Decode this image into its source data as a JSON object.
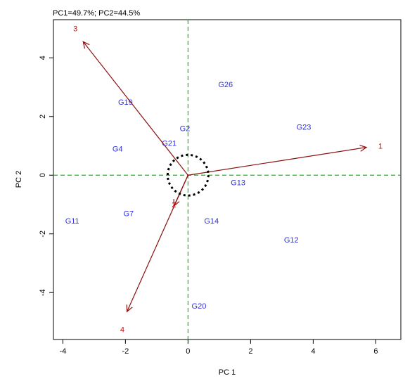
{
  "chart_data": {
    "type": "scatter",
    "variant": "gge-biplot",
    "title": "PC1=49.7%; PC2=44.5%",
    "xlabel": "PC 1",
    "ylabel": "PC 2",
    "xlim": [
      -4.3,
      6.8
    ],
    "ylim": [
      -5.6,
      5.3
    ],
    "x_ticks": [
      -4,
      -2,
      0,
      2,
      4,
      6
    ],
    "x_tick_labels": [
      "-4",
      "-2",
      "0",
      "2",
      "4",
      "6"
    ],
    "y_ticks": [
      4,
      2,
      0,
      -2,
      -4
    ],
    "y_tick_labels": [
      "4",
      "2",
      "0",
      "-2",
      "-4"
    ],
    "grid": false,
    "reference_lines": {
      "x": 0,
      "y": 0,
      "color": "#00cc00",
      "style": "dashed"
    },
    "genotype_color": "#3030e0",
    "environment_color": "#d01010",
    "vector_color": "#8b1010",
    "circle_color": "#000000",
    "genotypes": [
      {
        "label": "G26",
        "x": 1.2,
        "y": 3.1
      },
      {
        "label": "G19",
        "x": -2.0,
        "y": 2.5
      },
      {
        "label": "G23",
        "x": 3.7,
        "y": 1.65
      },
      {
        "label": "G2",
        "x": -0.1,
        "y": 1.6
      },
      {
        "label": "G4",
        "x": -2.25,
        "y": 0.9
      },
      {
        "label": "G21",
        "x": -0.6,
        "y": 1.1
      },
      {
        "label": "G13",
        "x": 1.6,
        "y": -0.25
      },
      {
        "label": "G7",
        "x": -1.9,
        "y": -1.3
      },
      {
        "label": "G11",
        "x": -3.7,
        "y": -1.55
      },
      {
        "label": "G14",
        "x": 0.75,
        "y": -1.55
      },
      {
        "label": "G12",
        "x": 3.3,
        "y": -2.2
      },
      {
        "label": "G20",
        "x": 0.35,
        "y": -4.45
      }
    ],
    "environments": [
      {
        "label": "1",
        "x": 6.15,
        "y": 1.0,
        "vector_end": [
          5.7,
          0.95
        ]
      },
      {
        "label": "3",
        "x": -3.6,
        "y": 5.0,
        "vector_end": [
          -3.35,
          4.55
        ]
      },
      {
        "label": "2",
        "x": -0.45,
        "y": -1.0,
        "vector_end": [
          -0.45,
          -1.05
        ]
      },
      {
        "label": "4",
        "x": -2.1,
        "y": -5.25,
        "vector_end": [
          -1.95,
          -4.65
        ]
      }
    ],
    "average_circle": {
      "cx": 0,
      "cy": 0,
      "r": 0.65
    }
  }
}
